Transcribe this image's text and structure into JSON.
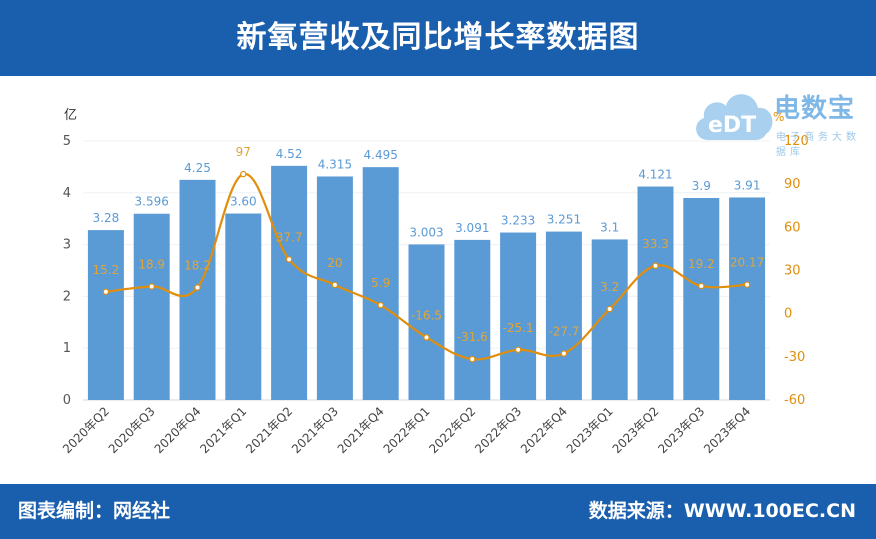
{
  "header": {
    "title": "新氧营收及同比增长率数据图"
  },
  "footer": {
    "left": "图表编制：网经社",
    "right": "数据来源：WWW.100EC.CN"
  },
  "logo": {
    "text": "电数宝",
    "sub": "电子商务大数据库",
    "cloud_text": "eDT"
  },
  "colors": {
    "bar": "#5b9bd5",
    "line": "#e08e0b",
    "header": "#1a5eae",
    "bar_label": "#5b9bd5",
    "line_label": "#e0a53a"
  },
  "chart_data": {
    "type": "bar",
    "categories": [
      "2020年Q2",
      "2020年Q3",
      "2020年Q4",
      "2021年Q1",
      "2021年Q2",
      "2021年Q3",
      "2021年Q4",
      "2022年Q1",
      "2022年Q2",
      "2022年Q3",
      "2022年Q4",
      "2023年Q1",
      "2023年Q2",
      "2023年Q3",
      "2023年Q4"
    ],
    "series": [
      {
        "axis": "left",
        "values": [
          3.28,
          3.596,
          4.25,
          3.6,
          4.52,
          4.315,
          4.495,
          3.003,
          3.091,
          3.233,
          3.251,
          3.1,
          4.121,
          3.9,
          3.91
        ],
        "labels": [
          "3.28",
          "3.596",
          "4.25",
          "3.60",
          "4.52",
          "4.315",
          "4.495",
          "3.003",
          "3.091",
          "3.233",
          "3.251",
          "3.1",
          "4.121",
          "3.9",
          "3.91"
        ]
      },
      {
        "axis": "right",
        "type": "line",
        "values": [
          15.2,
          18.9,
          18.2,
          97,
          37.7,
          20,
          5.9,
          -16.5,
          -31.6,
          -25.1,
          -27.7,
          3.2,
          33.3,
          19.2,
          20.17
        ],
        "labels": [
          "15.2",
          "18.9",
          "18.2",
          "97",
          "37.7",
          "20",
          "5.9",
          "-16.5",
          "-31.6",
          "-25.1",
          "-27.7",
          "3.2",
          "33.3",
          "19.2",
          "20.17"
        ]
      }
    ],
    "ylabel": "亿",
    "ylim": [
      0,
      5
    ],
    "yticks": [
      "0",
      "1",
      "2",
      "3",
      "4",
      "5"
    ],
    "y2label": "%",
    "y2lim": [
      -60,
      120
    ],
    "y2ticks": [
      "-60",
      "-30",
      "0",
      "30",
      "60",
      "90",
      "120"
    ],
    "grid": true
  }
}
